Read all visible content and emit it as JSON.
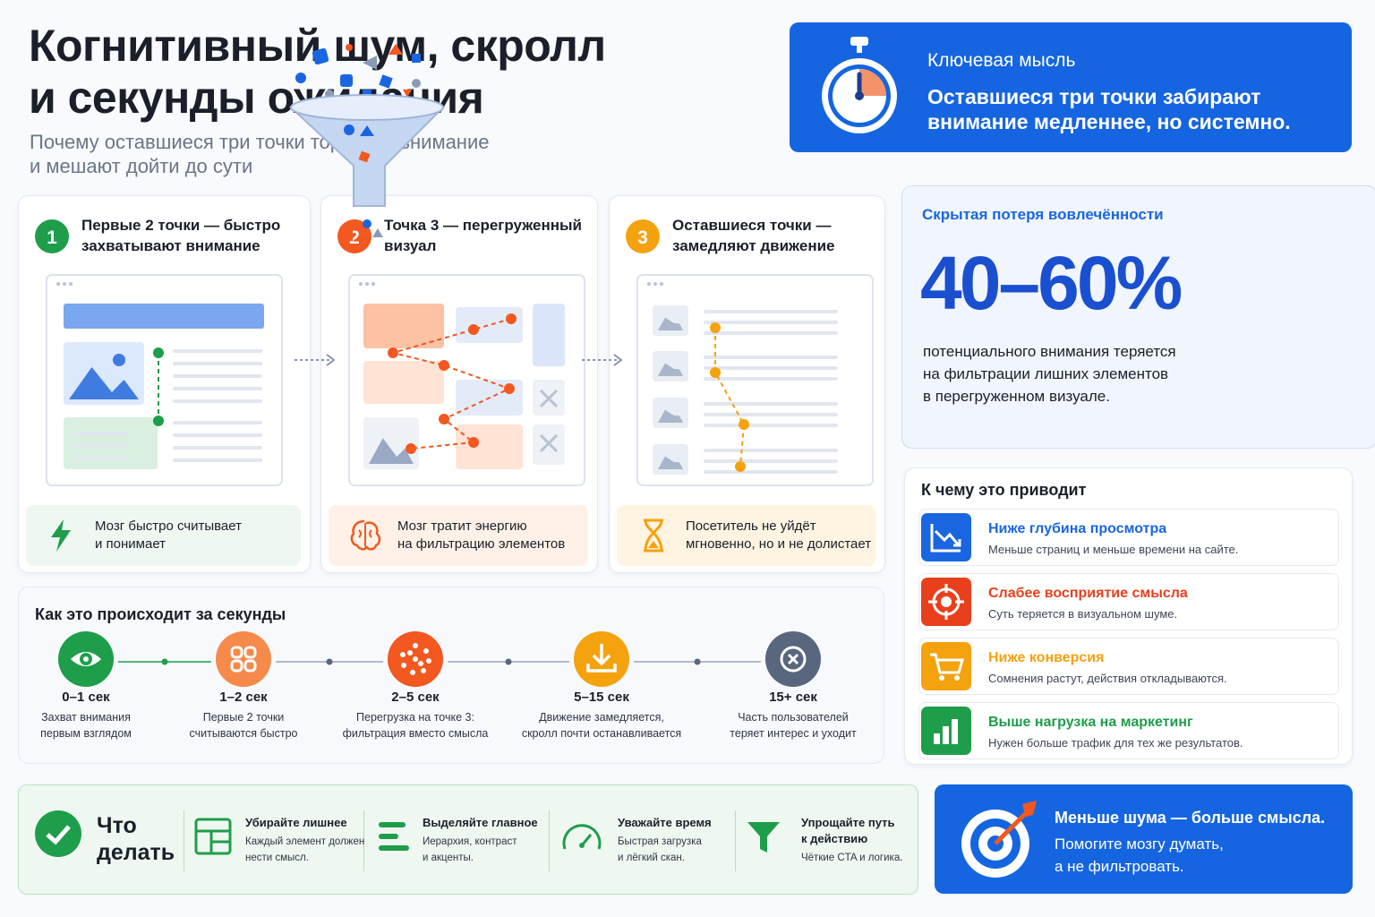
{
  "header": {
    "title": [
      "Когнитивный шум, скролл",
      "и секунды ожидания"
    ],
    "subtitle": [
      "Почему оставшиеся три точки тормозят внимание",
      "и мешают дойти до сути"
    ]
  },
  "key_idea": {
    "label": "Ключевая мысль",
    "text": [
      "Оставшиеся три точки забирают",
      "внимание медленнее, но системно."
    ]
  },
  "steps": [
    {
      "number": 1,
      "title": [
        "Первые 2 точки — быстро",
        "захватывают внимание"
      ],
      "caption": [
        "Мозг быстро считывает",
        "и понимает"
      ]
    },
    {
      "number": 2,
      "title": [
        "Точка 3 — перегруженный",
        "визуал"
      ],
      "caption": [
        "Мозг тратит энергию",
        "на фильтрацию элементов"
      ]
    },
    {
      "number": 3,
      "title": [
        "Оставшиеся точки —",
        "замедляют движение"
      ],
      "caption": [
        "Посетитель не уйдёт",
        "мгновенно, но и не долистает"
      ]
    }
  ],
  "hidden_loss": {
    "title": "Скрытая потеря вовлечённости",
    "value": "40–60%",
    "text": [
      "потенциального внимания теряется",
      "на фильтрации лишних элементов",
      "в перегруженном визуале."
    ]
  },
  "consequences": {
    "title": "К чему это приводит",
    "items": [
      {
        "title": "Ниже глубина просмотра",
        "text": "Меньше страниц и меньше времени на сайте."
      },
      {
        "title": "Слабее восприятие смысла",
        "text": "Суть теряется в визуальном шуме."
      },
      {
        "title": "Ниже конверсия",
        "text": "Сомнения растут, действия откладываются."
      },
      {
        "title": "Выше нагрузка на маркетинг",
        "text": "Нужен больше трафик для тех же результатов."
      }
    ]
  },
  "timeline": {
    "title": "Как это происходит за секунды",
    "items": [
      {
        "time": "0–1 сек",
        "text": [
          "Захват внимания",
          "первым взглядом"
        ]
      },
      {
        "time": "1–2 сек",
        "text": [
          "Первые 2 точки",
          "считываются быстро"
        ]
      },
      {
        "time": "2–5 сек",
        "text": [
          "Перегрузка на точке 3:",
          "фильтрация вместо смысла"
        ]
      },
      {
        "time": "5–15 сек",
        "text": [
          "Движение замедляется,",
          "скролл почти останавливается"
        ]
      },
      {
        "time": "15+ сек",
        "text": [
          "Часть пользователей",
          "теряет интерес и уходит"
        ]
      }
    ]
  },
  "actions": {
    "title": [
      "Что",
      "делать"
    ],
    "items": [
      {
        "title": [
          "Убирайте лишнее"
        ],
        "text": [
          "Каждый элемент должен",
          "нести смысл."
        ]
      },
      {
        "title": [
          "Выделяйте главное"
        ],
        "text": [
          "Иерархия, контраст",
          "и акценты."
        ]
      },
      {
        "title": [
          "Уважайте время"
        ],
        "text": [
          "Быстрая загрузка",
          "и лёгкий скан."
        ]
      },
      {
        "title": [
          "Упрощайте путь",
          "к действию"
        ],
        "text": [
          "Чёткие CTA и логика."
        ]
      }
    ]
  },
  "cta": {
    "title": "Меньше шума — больше смысла.",
    "text": [
      "Помогите мозгу думать,",
      "а не фильтровать."
    ]
  }
}
